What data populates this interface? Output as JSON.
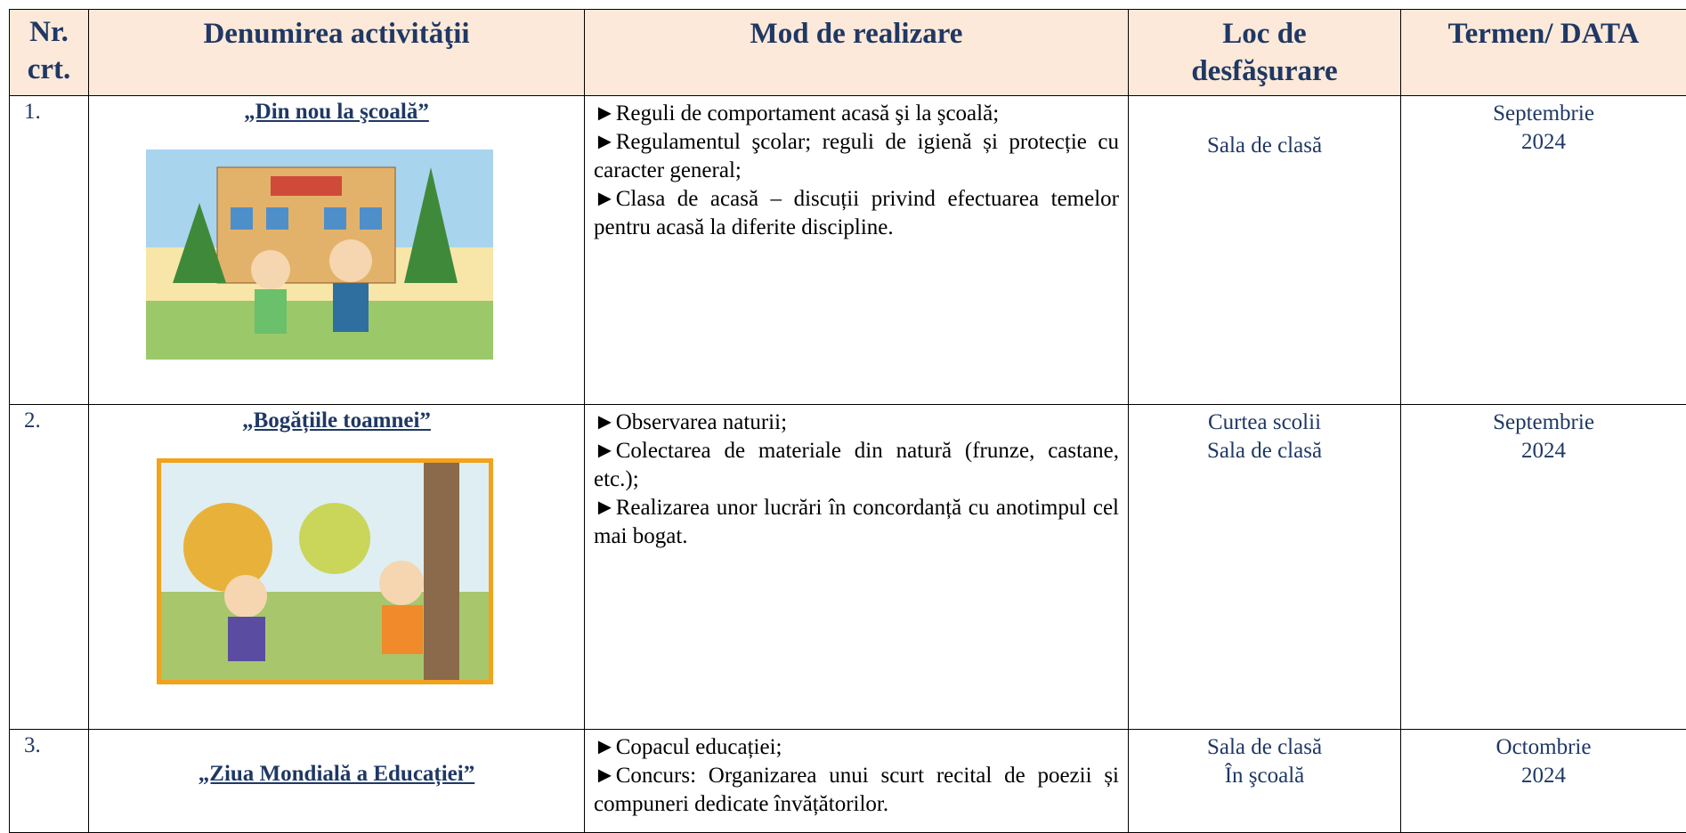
{
  "header": {
    "cells": [
      "Nr. crt.",
      "Denumirea activităţii",
      "Mod de realizare",
      "Loc de desfăşurare",
      "Termen/ DATA"
    ]
  },
  "rows": [
    {
      "nr": "1.",
      "title": "„Din nou la şcoală”",
      "items": [
        "►Reguli de comportament acasă şi la şcoală;",
        "►Regulamentul şcolar; reguli de igienă și protecție cu caracter general;",
        "►Clasa de acasă – discuții privind efectuarea temelor pentru acasă la diferite discipline."
      ],
      "place": [
        "Sala de clasă"
      ],
      "date": [
        "Septembrie",
        "2024"
      ]
    },
    {
      "nr": "2.",
      "title": "„Bogățiile toamnei”",
      "items": [
        "►Observarea naturii;",
        "►Colectarea de materiale din natură (frunze, castane, etc.);",
        "►Realizarea unor lucrări în concordanță cu anotimpul cel mai bogat."
      ],
      "place": [
        "Curtea scolii",
        "Sala de clasă"
      ],
      "date": [
        "Septembrie",
        "2024"
      ]
    },
    {
      "nr": "3.",
      "title": "„Ziua Mondială a Educației”",
      "items": [
        "►Copacul educației;",
        "►Concurs: Organizarea unui scurt recital de poezii și compuneri dedicate învățătorilor."
      ],
      "place": [
        "Sala de clasă",
        "În şcoală"
      ],
      "date": [
        "Octombrie",
        "2024"
      ]
    }
  ]
}
